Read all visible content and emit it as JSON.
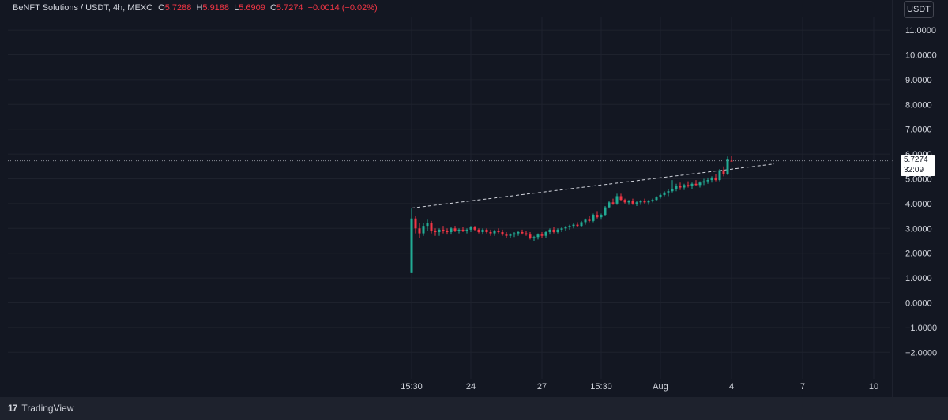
{
  "legend": {
    "symbol": "BeNFT Solutions / USDT, 4h, MEXC",
    "open_label": "O",
    "open": "5.7288",
    "high_label": "H",
    "high": "5.9188",
    "low_label": "L",
    "low": "5.6909",
    "close_label": "C",
    "close": "5.7274",
    "change": "−0.0014 (−0.02%)"
  },
  "currency": "USDT",
  "last_price": {
    "price": "5.7274",
    "countdown": "32:09"
  },
  "brand": {
    "logo": "17",
    "name": "TradingView"
  },
  "colors": {
    "up": "#22ab94",
    "down": "#f23645",
    "background": "#131722",
    "grid": "#1e222d"
  },
  "chart_data": {
    "type": "candlestick",
    "y_axis": {
      "ticks": [
        "11.0000",
        "10.0000",
        "9.0000",
        "8.0000",
        "7.0000",
        "6.0000",
        "5.0000",
        "4.0000",
        "3.0000",
        "2.0000",
        "1.0000",
        "0.0000",
        "−1.0000",
        "−2.0000"
      ],
      "range": [
        -2.5,
        11.4
      ]
    },
    "x_axis": {
      "ticks": [
        {
          "label": "15:30",
          "i": 0
        },
        {
          "label": "24",
          "i": 15
        },
        {
          "label": "27",
          "i": 33
        },
        {
          "label": "15:30",
          "i": 48
        },
        {
          "label": "Aug",
          "i": 63
        },
        {
          "label": "4",
          "i": 81
        },
        {
          "label": "7",
          "i": 99
        },
        {
          "label": "10",
          "i": 117
        }
      ]
    },
    "candles": [
      [
        1.2,
        3.8,
        1.2,
        3.4
      ],
      [
        3.4,
        3.5,
        2.8,
        3.0
      ],
      [
        3.0,
        3.2,
        2.6,
        2.8
      ],
      [
        2.8,
        3.2,
        2.7,
        3.1
      ],
      [
        3.1,
        3.35,
        2.9,
        3.2
      ],
      [
        3.2,
        3.3,
        2.8,
        2.9
      ],
      [
        2.9,
        3.0,
        2.7,
        2.85
      ],
      [
        2.85,
        3.0,
        2.7,
        2.95
      ],
      [
        2.95,
        3.1,
        2.8,
        2.9
      ],
      [
        2.9,
        3.0,
        2.75,
        2.85
      ],
      [
        2.85,
        3.05,
        2.75,
        3.0
      ],
      [
        3.0,
        3.1,
        2.85,
        2.9
      ],
      [
        2.9,
        3.0,
        2.8,
        2.95
      ],
      [
        2.95,
        3.05,
        2.85,
        2.9
      ],
      [
        2.9,
        3.0,
        2.8,
        2.95
      ],
      [
        2.95,
        3.1,
        2.85,
        3.05
      ],
      [
        3.05,
        3.1,
        2.9,
        2.95
      ],
      [
        2.95,
        3.0,
        2.8,
        2.85
      ],
      [
        2.85,
        3.0,
        2.75,
        2.95
      ],
      [
        2.95,
        3.0,
        2.8,
        2.85
      ],
      [
        2.85,
        2.95,
        2.7,
        2.8
      ],
      [
        2.8,
        2.95,
        2.7,
        2.9
      ],
      [
        2.9,
        3.0,
        2.8,
        2.85
      ],
      [
        2.85,
        2.95,
        2.7,
        2.75
      ],
      [
        2.75,
        2.85,
        2.6,
        2.7
      ],
      [
        2.7,
        2.8,
        2.6,
        2.75
      ],
      [
        2.75,
        2.85,
        2.65,
        2.8
      ],
      [
        2.8,
        2.9,
        2.7,
        2.85
      ],
      [
        2.85,
        2.95,
        2.75,
        2.8
      ],
      [
        2.8,
        2.9,
        2.7,
        2.75
      ],
      [
        2.75,
        2.85,
        2.55,
        2.6
      ],
      [
        2.6,
        2.7,
        2.5,
        2.65
      ],
      [
        2.65,
        2.8,
        2.55,
        2.75
      ],
      [
        2.75,
        2.85,
        2.6,
        2.7
      ],
      [
        2.7,
        2.9,
        2.6,
        2.85
      ],
      [
        2.85,
        3.0,
        2.75,
        2.95
      ],
      [
        2.95,
        3.05,
        2.8,
        2.85
      ],
      [
        2.85,
        3.0,
        2.8,
        2.95
      ],
      [
        2.95,
        3.05,
        2.85,
        3.0
      ],
      [
        3.0,
        3.1,
        2.9,
        3.05
      ],
      [
        3.05,
        3.15,
        2.95,
        3.1
      ],
      [
        3.1,
        3.2,
        3.0,
        3.15
      ],
      [
        3.15,
        3.25,
        3.05,
        3.1
      ],
      [
        3.1,
        3.3,
        3.05,
        3.25
      ],
      [
        3.25,
        3.4,
        3.15,
        3.35
      ],
      [
        3.35,
        3.5,
        3.25,
        3.3
      ],
      [
        3.3,
        3.6,
        3.25,
        3.55
      ],
      [
        3.55,
        3.7,
        3.4,
        3.45
      ],
      [
        3.45,
        3.6,
        3.35,
        3.55
      ],
      [
        3.55,
        3.9,
        3.5,
        3.85
      ],
      [
        3.85,
        4.1,
        3.8,
        4.05
      ],
      [
        4.05,
        4.2,
        3.95,
        4.0
      ],
      [
        4.0,
        4.4,
        3.95,
        4.3
      ],
      [
        4.3,
        4.4,
        4.1,
        4.15
      ],
      [
        4.15,
        4.2,
        4.0,
        4.05
      ],
      [
        4.05,
        4.15,
        3.95,
        4.1
      ],
      [
        4.1,
        4.2,
        3.95,
        4.0
      ],
      [
        4.0,
        4.1,
        3.9,
        4.05
      ],
      [
        4.05,
        4.15,
        3.95,
        4.1
      ],
      [
        4.1,
        4.2,
        4.0,
        4.05
      ],
      [
        4.05,
        4.15,
        3.95,
        4.1
      ],
      [
        4.1,
        4.2,
        4.05,
        4.15
      ],
      [
        4.15,
        4.3,
        4.1,
        4.25
      ],
      [
        4.25,
        4.4,
        4.2,
        4.35
      ],
      [
        4.35,
        4.5,
        4.3,
        4.45
      ],
      [
        4.45,
        4.6,
        4.3,
        4.5
      ],
      [
        4.5,
        4.95,
        4.45,
        4.6
      ],
      [
        4.6,
        4.8,
        4.5,
        4.7
      ],
      [
        4.7,
        4.85,
        4.55,
        4.65
      ],
      [
        4.65,
        4.8,
        4.55,
        4.75
      ],
      [
        4.75,
        4.9,
        4.65,
        4.7
      ],
      [
        4.7,
        4.85,
        4.6,
        4.8
      ],
      [
        4.8,
        4.95,
        4.7,
        4.75
      ],
      [
        4.75,
        4.9,
        4.65,
        4.85
      ],
      [
        4.85,
        5.0,
        4.75,
        4.9
      ],
      [
        4.9,
        5.05,
        4.8,
        4.95
      ],
      [
        4.95,
        5.1,
        4.85,
        5.05
      ],
      [
        5.05,
        5.2,
        4.9,
        4.95
      ],
      [
        4.95,
        5.4,
        4.9,
        5.35
      ],
      [
        5.35,
        5.5,
        5.1,
        5.2
      ],
      [
        5.2,
        5.9,
        5.15,
        5.8
      ],
      [
        5.7288,
        5.9188,
        5.6909,
        5.7274
      ]
    ],
    "trendline": {
      "from": {
        "i": 0,
        "price": 3.82
      },
      "to": {
        "i": 92,
        "price": 5.6
      }
    },
    "last_price_line": 5.7274
  }
}
